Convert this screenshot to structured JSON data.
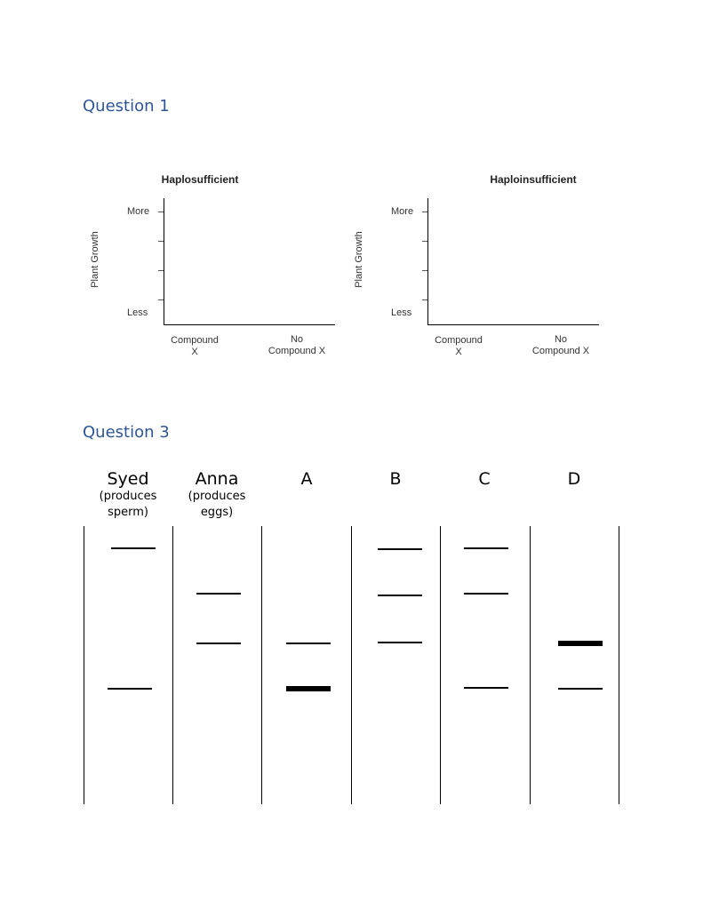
{
  "question1": {
    "heading": "Question 1",
    "plots": [
      {
        "title": "Haplosufficient",
        "y_axis_label": "Plant Growth",
        "y_top_label": "More",
        "y_bottom_label": "Less",
        "x_labels": [
          {
            "line1": "Compound",
            "line2": "X"
          },
          {
            "line1": "No",
            "line2": "Compound X"
          }
        ]
      },
      {
        "title": "Haploinsufficient",
        "y_axis_label": "Plant Growth",
        "y_top_label": "More",
        "y_bottom_label": "Less",
        "x_labels": [
          {
            "line1": "Compound",
            "line2": "X"
          },
          {
            "line1": "No",
            "line2": "Compound X"
          }
        ]
      }
    ]
  },
  "question3": {
    "heading": "Question 3",
    "lanes": [
      {
        "name": "Syed",
        "sub1": "(produces",
        "sub2": "sperm)"
      },
      {
        "name": "Anna",
        "sub1": "(produces",
        "sub2": "eggs)"
      },
      {
        "name": "A",
        "sub1": "",
        "sub2": ""
      },
      {
        "name": "B",
        "sub1": "",
        "sub2": ""
      },
      {
        "name": "C",
        "sub1": "",
        "sub2": ""
      },
      {
        "name": "D",
        "sub1": "",
        "sub2": ""
      }
    ]
  }
}
